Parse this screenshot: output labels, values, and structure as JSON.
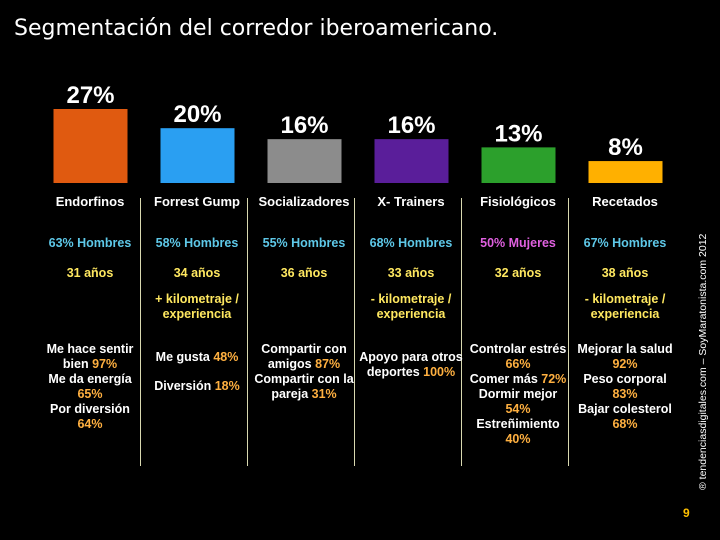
{
  "title": "Segmentación del corredor iberoamericano.",
  "copyright": "® tendenciasdigitales.com – SoyMaratonista.com 2012",
  "page_number": "9",
  "colors": {
    "gender_men": "#5ec8e8",
    "gender_women": "#e060e0",
    "age": "#ffe860",
    "percent_highlight": "#ffb040",
    "divider": "#d8d8b0"
  },
  "chart_data": {
    "type": "bar",
    "title": "",
    "categories": [
      "Endorfinos",
      "Forrest Gump",
      "Socializadores",
      "X- Trainers",
      "Fisiológicos",
      "Recetados"
    ],
    "values": [
      27,
      20,
      16,
      16,
      13,
      8
    ],
    "value_labels": [
      "27%",
      "20%",
      "16%",
      "16%",
      "13%",
      "8%"
    ],
    "colors": [
      "#e05a10",
      "#2a9ff2",
      "#8c8c8c",
      "#5a1e9a",
      "#2ca02c",
      "#ffb000"
    ],
    "ylim": [
      0,
      27
    ],
    "grid": false,
    "legend": "none"
  },
  "segments": [
    {
      "gender": "63% Hombres",
      "gender_type": "men",
      "age": "31 años",
      "km": "",
      "motivations": [
        {
          "text": "Me hace sentir bien",
          "pct": "97%"
        },
        {
          "text": "Me da energía",
          "pct": "65%"
        },
        {
          "text": "Por diversión",
          "pct": "64%"
        }
      ]
    },
    {
      "gender": "58% Hombres",
      "gender_type": "men",
      "age": "34 años",
      "km": "+ kilometraje / experiencia",
      "motivations": [
        {
          "text": "Me gusta",
          "pct": "48%"
        },
        {
          "text": "Diversión",
          "pct": "18%"
        }
      ]
    },
    {
      "gender": "55% Hombres",
      "gender_type": "men",
      "age": "36 años",
      "km": "",
      "motivations": [
        {
          "text": "Compartir con amigos",
          "pct": "87%"
        },
        {
          "text": "Compartir con la pareja",
          "pct": "31%"
        }
      ]
    },
    {
      "gender": "68% Hombres",
      "gender_type": "men",
      "age": "33 años",
      "km": "- kilometraje / experiencia",
      "motivations": [
        {
          "text": "Apoyo para otros deportes",
          "pct": "100%"
        }
      ]
    },
    {
      "gender": "50% Mujeres",
      "gender_type": "women",
      "age": "32 años",
      "km": "",
      "motivations": [
        {
          "text": "Controlar estrés",
          "pct": "66%"
        },
        {
          "text": "Comer más",
          "pct": "72%"
        },
        {
          "text": "Dormir mejor",
          "pct": "54%"
        },
        {
          "text": "Estreñimiento",
          "pct": "40%"
        }
      ]
    },
    {
      "gender": "67% Hombres",
      "gender_type": "men",
      "age": "38 años",
      "km": "- kilometraje / experiencia",
      "motivations": [
        {
          "text": "Mejorar la salud",
          "pct": "92%"
        },
        {
          "text": "Peso corporal",
          "pct": "83%"
        },
        {
          "text": "Bajar colesterol",
          "pct": "68%"
        }
      ]
    }
  ]
}
